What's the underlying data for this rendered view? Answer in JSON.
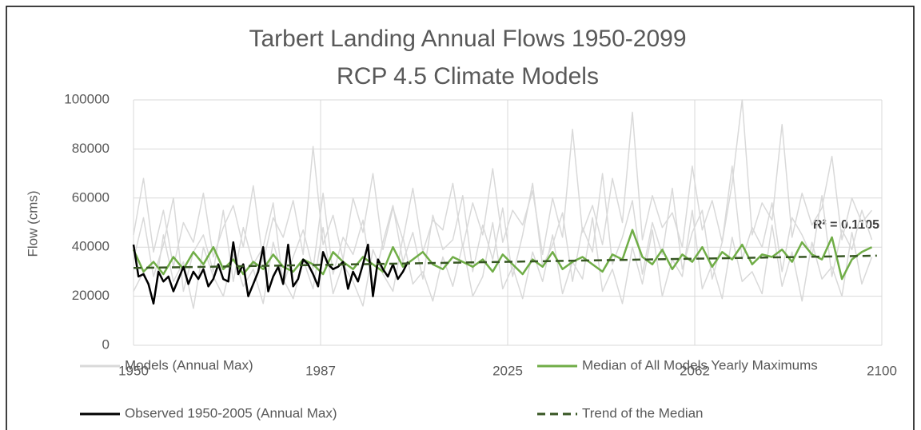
{
  "chart_data": {
    "type": "line",
    "title": "Tarbert Landing Annual Flows 1950-2099",
    "subtitle": "RCP 4.5 Climate Models",
    "y_label": "Flow (cms)",
    "annotation": "R² = 0.1105",
    "xlim": [
      1950,
      2100
    ],
    "xticks": [
      1950,
      {
        "value": 1987.5,
        "label": "1987"
      },
      2025,
      {
        "value": 2062.5,
        "label": "2062"
      },
      2100
    ],
    "ylim": [
      0,
      100000
    ],
    "yticks": [
      0,
      20000,
      40000,
      60000,
      80000,
      100000
    ],
    "grid": true,
    "x": [
      1950,
      1952,
      1954,
      1956,
      1958,
      1960,
      1962,
      1964,
      1966,
      1968,
      1970,
      1972,
      1974,
      1976,
      1978,
      1980,
      1982,
      1984,
      1986,
      1988,
      1990,
      1992,
      1994,
      1996,
      1998,
      2000,
      2002,
      2004,
      2006,
      2008,
      2010,
      2012,
      2014,
      2016,
      2018,
      2020,
      2022,
      2024,
      2026,
      2028,
      2030,
      2032,
      2034,
      2036,
      2038,
      2040,
      2042,
      2044,
      2046,
      2048,
      2050,
      2052,
      2054,
      2056,
      2058,
      2060,
      2062,
      2064,
      2066,
      2068,
      2070,
      2072,
      2074,
      2076,
      2078,
      2080,
      2082,
      2084,
      2086,
      2088,
      2090,
      2092,
      2094,
      2096,
      2098
    ],
    "series": [
      {
        "name": "Models (Annual Max)",
        "color": "#d9d9d9",
        "values": [
          [
            35000,
            52000,
            28000,
            41000,
            60000,
            22000,
            38000,
            45000,
            30000,
            55000,
            26000,
            48000,
            33000,
            40000,
            58000,
            25000,
            36000,
            47000,
            31000,
            62000,
            29000,
            44000,
            37000,
            51000,
            24000,
            42000,
            57000,
            34000,
            46000,
            27000,
            53000,
            39000,
            43000,
            61000,
            30000,
            49000,
            35000,
            56000,
            28000,
            45000,
            66000,
            32000,
            41000,
            54000,
            26000,
            48000,
            38000,
            70000,
            33000,
            44000,
            59000,
            29000,
            50000,
            37000,
            64000,
            31000,
            46000,
            55000,
            27000,
            42000,
            73000,
            35000,
            48000,
            40000,
            58000,
            30000,
            52000,
            45000,
            36000,
            61000,
            28000,
            47000,
            39000,
            55000,
            43000
          ],
          [
            22000,
            30000,
            18000,
            45000,
            26000,
            34000,
            15000,
            40000,
            28000,
            20000,
            37000,
            24000,
            31000,
            17000,
            42000,
            27000,
            19000,
            35000,
            23000,
            48000,
            21000,
            33000,
            26000,
            16000,
            39000,
            29000,
            22000,
            44000,
            25000,
            30000,
            18000,
            36000,
            24000,
            41000,
            20000,
            28000,
            50000,
            23000,
            32000,
            19000,
            38000,
            26000,
            45000,
            21000,
            34000,
            27000,
            52000,
            22000,
            31000,
            17000,
            40000,
            25000,
            47000,
            20000,
            35000,
            28000,
            55000,
            23000,
            33000,
            19000,
            44000,
            26000,
            30000,
            21000,
            49000,
            24000,
            38000,
            18000,
            42000,
            27000,
            32000,
            20000,
            46000,
            25000,
            36000
          ],
          [
            45000,
            68000,
            38000,
            55000,
            32000,
            50000,
            42000,
            62000,
            36000,
            48000,
            57000,
            40000,
            65000,
            34000,
            52000,
            44000,
            59000,
            37000,
            81000,
            41000,
            53000,
            35000,
            60000,
            46000,
            70000,
            39000,
            56000,
            43000,
            64000,
            38000,
            51000,
            47000,
            66000,
            40000,
            58000,
            45000,
            72000,
            42000,
            55000,
            49000,
            63000,
            37000,
            60000,
            44000,
            88000,
            46000,
            57000,
            41000,
            68000,
            50000,
            95000,
            43000,
            61000,
            48000,
            54000,
            40000,
            73000,
            47000,
            59000,
            42000,
            66000,
            100000,
            45000,
            58000,
            51000,
            90000,
            44000,
            62000,
            49000,
            56000,
            77000,
            43000,
            60000,
            50000,
            55000
          ]
        ]
      },
      {
        "name": "Median of All Models Yearly Maximums",
        "color": "#70ad47",
        "values": [
          39000,
          30000,
          34000,
          29000,
          36000,
          31000,
          38000,
          33000,
          40000,
          31000,
          35000,
          29000,
          34000,
          31000,
          37000,
          32000,
          30000,
          35000,
          33000,
          29000,
          38000,
          34000,
          31000,
          36000,
          33000,
          30000,
          40000,
          32000,
          35000,
          38000,
          33000,
          31000,
          36000,
          34000,
          32000,
          35000,
          30000,
          37000,
          33000,
          29000,
          35000,
          32000,
          38000,
          31000,
          34000,
          36000,
          33000,
          30000,
          37000,
          35000,
          47000,
          36000,
          33000,
          39000,
          31000,
          37000,
          34000,
          40000,
          32000,
          38000,
          35000,
          41000,
          33000,
          37000,
          36000,
          39000,
          34000,
          42000,
          37000,
          35000,
          44000,
          27000,
          35000,
          38000,
          40000
        ]
      },
      {
        "name": "Observed 1950-2005 (Annual Max)",
        "color": "#000000",
        "x": [
          1950,
          1951,
          1952,
          1953,
          1954,
          1955,
          1956,
          1957,
          1958,
          1959,
          1960,
          1961,
          1962,
          1963,
          1964,
          1965,
          1966,
          1967,
          1968,
          1969,
          1970,
          1971,
          1972,
          1973,
          1974,
          1975,
          1976,
          1977,
          1978,
          1979,
          1980,
          1981,
          1982,
          1983,
          1984,
          1985,
          1986,
          1987,
          1988,
          1989,
          1990,
          1991,
          1992,
          1993,
          1994,
          1995,
          1996,
          1997,
          1998,
          1999,
          2000,
          2001,
          2002,
          2003,
          2004,
          2005
        ],
        "values": [
          41000,
          28000,
          29000,
          25000,
          17000,
          30000,
          26000,
          28000,
          22000,
          27000,
          32000,
          25000,
          30000,
          27000,
          31000,
          24000,
          27000,
          33000,
          27000,
          26000,
          42000,
          29000,
          33000,
          20000,
          25000,
          30000,
          40000,
          22000,
          28000,
          32000,
          25000,
          41000,
          24000,
          27000,
          35000,
          33000,
          29000,
          24000,
          38000,
          33000,
          31000,
          32000,
          34000,
          23000,
          30000,
          26000,
          33000,
          41000,
          20000,
          35000,
          31000,
          28000,
          33000,
          27000,
          30000,
          34000
        ]
      },
      {
        "name": "Trend of the Median",
        "color": "#375623",
        "dashed": true,
        "x": [
          1950,
          2099
        ],
        "values": [
          31500,
          36500
        ]
      }
    ]
  }
}
